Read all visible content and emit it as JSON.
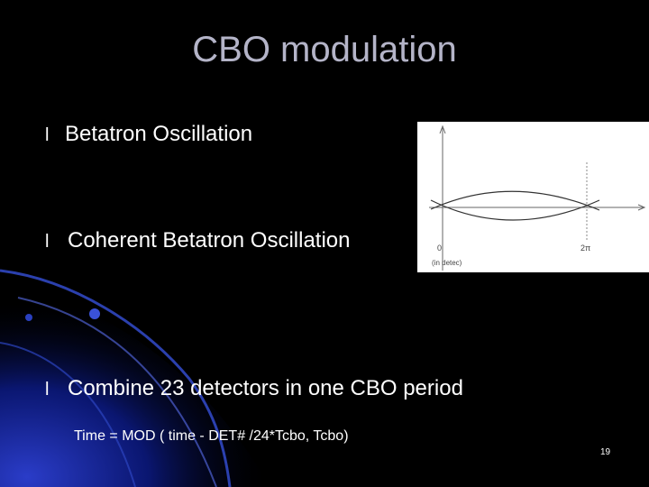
{
  "slide": {
    "title": "CBO modulation",
    "bullets": [
      {
        "symbol": "l",
        "text": "Betatron Oscillation"
      },
      {
        "symbol": "l",
        "text": "Coherent Betatron Oscillation"
      },
      {
        "symbol": "l",
        "text": "Combine 23 detectors in one CBO period"
      }
    ],
    "formula": "Time = MOD ( time - DET# /24*Tcbo, Tcbo)",
    "page_number": "19",
    "figure": {
      "x_start_label": "0",
      "x_end_label": "2π",
      "x_axis_note": "(in detec)"
    }
  }
}
